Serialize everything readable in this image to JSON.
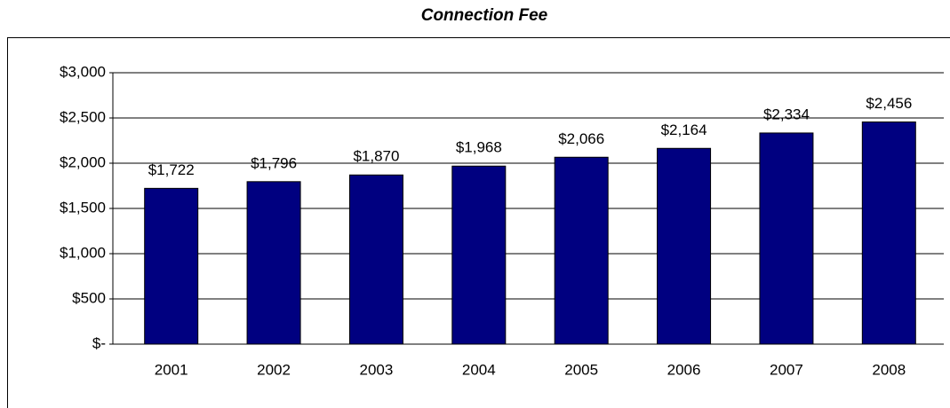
{
  "chart_data": {
    "type": "bar",
    "title": "Connection Fee",
    "categories": [
      "2001",
      "2002",
      "2003",
      "2004",
      "2005",
      "2006",
      "2007",
      "2008"
    ],
    "values": [
      1722,
      1796,
      1870,
      1968,
      2066,
      2164,
      2334,
      2456
    ],
    "value_labels": [
      "$1,722",
      "$1,796",
      "$1,870",
      "$1,968",
      "$2,066",
      "$2,164",
      "$2,334",
      "$2,456"
    ],
    "color": "#000080",
    "ylim": [
      0,
      3000
    ],
    "yticks": [
      {
        "value": 0,
        "label": "$-"
      },
      {
        "value": 500,
        "label": "$500"
      },
      {
        "value": 1000,
        "label": "$1,000"
      },
      {
        "value": 1500,
        "label": "$1,500"
      },
      {
        "value": 2000,
        "label": "$2,000"
      },
      {
        "value": 2500,
        "label": "$2,500"
      },
      {
        "value": 3000,
        "label": "$3,000"
      }
    ],
    "grid": true
  }
}
